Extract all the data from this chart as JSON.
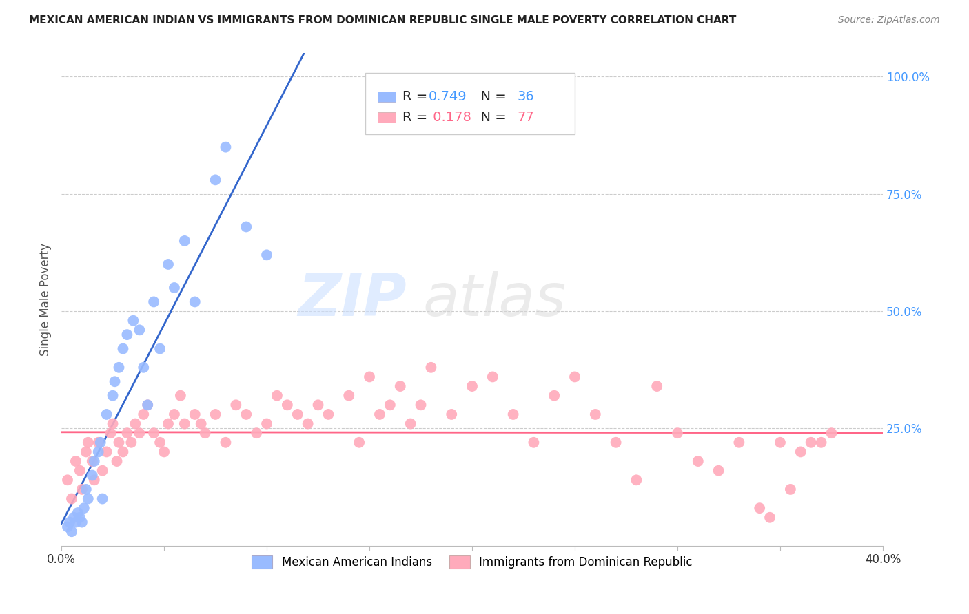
{
  "title": "MEXICAN AMERICAN INDIAN VS IMMIGRANTS FROM DOMINICAN REPUBLIC SINGLE MALE POVERTY CORRELATION CHART",
  "source": "Source: ZipAtlas.com",
  "ylabel": "Single Male Poverty",
  "yticks_labels": [
    "100.0%",
    "75.0%",
    "50.0%",
    "25.0%"
  ],
  "yticks_values": [
    1.0,
    0.75,
    0.5,
    0.25
  ],
  "xlim": [
    0.0,
    0.4
  ],
  "ylim": [
    0.0,
    1.05
  ],
  "legend1_r": "0.749",
  "legend1_n": "36",
  "legend2_r": "0.178",
  "legend2_n": "77",
  "color_blue": "#99bbff",
  "color_pink": "#ffaabb",
  "color_blue_line": "#3366cc",
  "color_pink_line": "#ff6688",
  "color_blue_text": "#4499ff",
  "color_pink_text": "#ff6688",
  "watermark_zip": "ZIP",
  "watermark_atlas": "atlas",
  "blue_dots_x": [
    0.003,
    0.004,
    0.005,
    0.006,
    0.007,
    0.008,
    0.009,
    0.01,
    0.011,
    0.012,
    0.013,
    0.015,
    0.016,
    0.018,
    0.019,
    0.02,
    0.022,
    0.025,
    0.026,
    0.028,
    0.03,
    0.032,
    0.035,
    0.038,
    0.04,
    0.042,
    0.045,
    0.048,
    0.052,
    0.055,
    0.06,
    0.065,
    0.075,
    0.08,
    0.09,
    0.1
  ],
  "blue_dots_y": [
    0.04,
    0.05,
    0.03,
    0.06,
    0.05,
    0.07,
    0.06,
    0.05,
    0.08,
    0.12,
    0.1,
    0.15,
    0.18,
    0.2,
    0.22,
    0.1,
    0.28,
    0.32,
    0.35,
    0.38,
    0.42,
    0.45,
    0.48,
    0.46,
    0.38,
    0.3,
    0.52,
    0.42,
    0.6,
    0.55,
    0.65,
    0.52,
    0.78,
    0.85,
    0.68,
    0.62
  ],
  "pink_dots_x": [
    0.003,
    0.005,
    0.007,
    0.009,
    0.01,
    0.012,
    0.013,
    0.015,
    0.016,
    0.018,
    0.02,
    0.022,
    0.024,
    0.025,
    0.027,
    0.028,
    0.03,
    0.032,
    0.034,
    0.036,
    0.038,
    0.04,
    0.042,
    0.045,
    0.048,
    0.05,
    0.052,
    0.055,
    0.058,
    0.06,
    0.065,
    0.068,
    0.07,
    0.075,
    0.08,
    0.085,
    0.09,
    0.095,
    0.1,
    0.105,
    0.11,
    0.115,
    0.12,
    0.125,
    0.13,
    0.14,
    0.145,
    0.15,
    0.155,
    0.16,
    0.165,
    0.17,
    0.175,
    0.18,
    0.19,
    0.2,
    0.21,
    0.22,
    0.23,
    0.24,
    0.25,
    0.26,
    0.27,
    0.28,
    0.29,
    0.3,
    0.31,
    0.32,
    0.33,
    0.34,
    0.345,
    0.35,
    0.355,
    0.36,
    0.365,
    0.37,
    0.375
  ],
  "pink_dots_y": [
    0.14,
    0.1,
    0.18,
    0.16,
    0.12,
    0.2,
    0.22,
    0.18,
    0.14,
    0.22,
    0.16,
    0.2,
    0.24,
    0.26,
    0.18,
    0.22,
    0.2,
    0.24,
    0.22,
    0.26,
    0.24,
    0.28,
    0.3,
    0.24,
    0.22,
    0.2,
    0.26,
    0.28,
    0.32,
    0.26,
    0.28,
    0.26,
    0.24,
    0.28,
    0.22,
    0.3,
    0.28,
    0.24,
    0.26,
    0.32,
    0.3,
    0.28,
    0.26,
    0.3,
    0.28,
    0.32,
    0.22,
    0.36,
    0.28,
    0.3,
    0.34,
    0.26,
    0.3,
    0.38,
    0.28,
    0.34,
    0.36,
    0.28,
    0.22,
    0.32,
    0.36,
    0.28,
    0.22,
    0.14,
    0.34,
    0.24,
    0.18,
    0.16,
    0.22,
    0.08,
    0.06,
    0.22,
    0.12,
    0.2,
    0.22,
    0.22,
    0.24
  ]
}
